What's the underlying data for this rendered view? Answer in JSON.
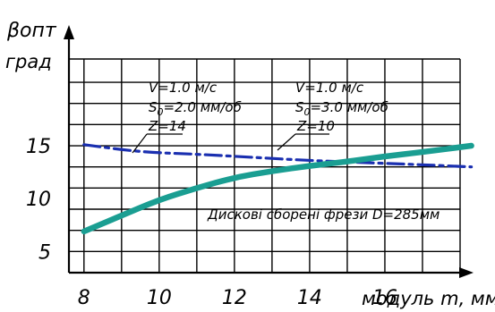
{
  "chart_data": {
    "type": "line",
    "ylabel": "βопт",
    "ylabel_sub": "опт",
    "ylabel_units": "град",
    "xlabel": "модуль m, мм",
    "xlim": [
      7.6,
      18
    ],
    "ylim": [
      3,
      23.2
    ],
    "xticks": [
      "8",
      "10",
      "12",
      "14",
      "16"
    ],
    "yticks": [
      "5",
      "10",
      "15"
    ],
    "grid": true,
    "grid_x": [
      8,
      9,
      10,
      11,
      12,
      13,
      14,
      15,
      16,
      17,
      18
    ],
    "grid_y": [
      3,
      5,
      7,
      9,
      11,
      13,
      15,
      17,
      19,
      21
    ],
    "series": [
      {
        "style": "dash-dot",
        "color": "#1a2fb0",
        "x": [
          8,
          9.5,
          11,
          12.5,
          14,
          15.5,
          17,
          18.3
        ],
        "y": [
          15.1,
          14.4,
          14.2,
          13.9,
          13.6,
          13.4,
          13.2,
          13.0
        ]
      },
      {
        "style": "solid",
        "color": "#1a9e92",
        "x": [
          8,
          9,
          10,
          11,
          12,
          13,
          14,
          15,
          16,
          17,
          18.3
        ],
        "y": [
          6.9,
          8.4,
          9.9,
          11.0,
          12.0,
          12.6,
          13.1,
          13.5,
          14.0,
          14.4,
          15.0
        ]
      }
    ],
    "annotations": [
      {
        "lines": [
          "V=1.0 м/с",
          "S",
          "=2.0 мм/об",
          "Z=14"
        ],
        "sub": "0"
      },
      {
        "lines": [
          "V=1.0 м/с",
          "S",
          "=3.0 мм/об",
          "Z=10"
        ],
        "sub": "0"
      },
      {
        "text": "Дискові сборені фрези D=285мм"
      }
    ]
  }
}
